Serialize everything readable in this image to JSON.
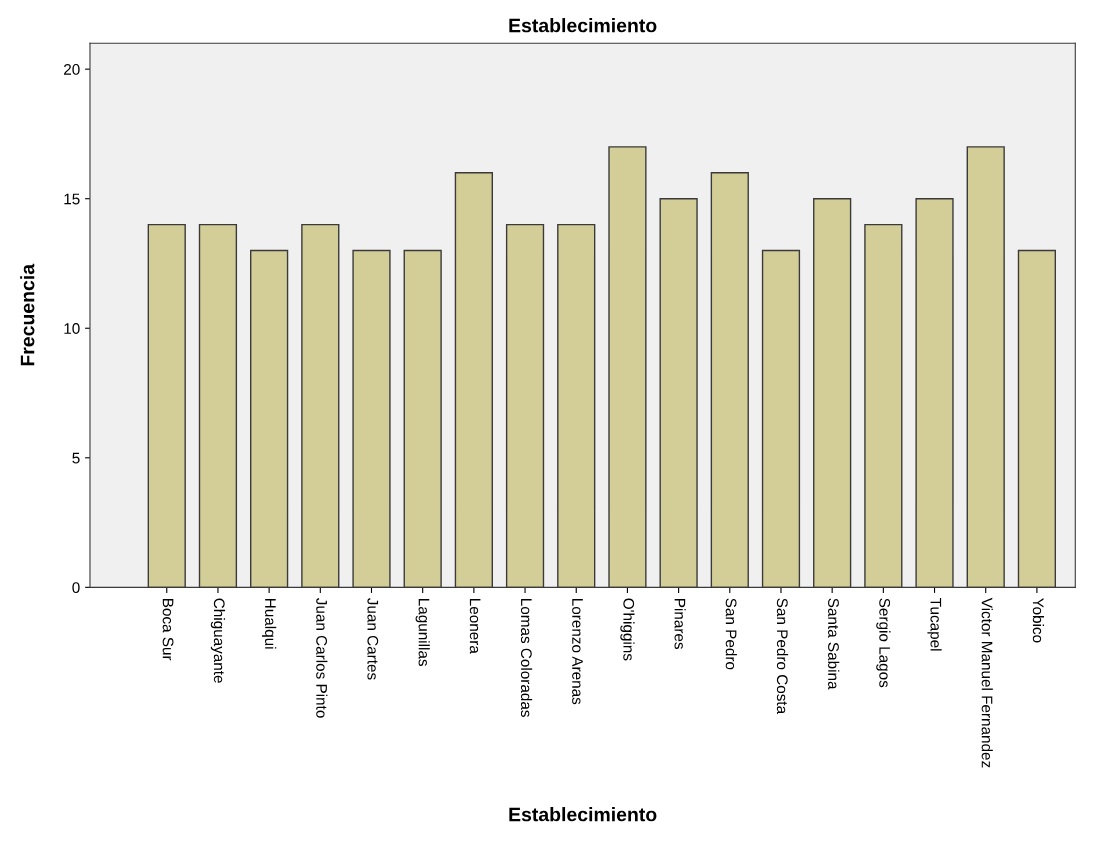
{
  "chart_data": {
    "type": "bar",
    "title": "Establecimiento",
    "xlabel": "Establecimiento",
    "ylabel": "Frecuencia",
    "categories": [
      "Boca Sur",
      "Chiguayante",
      "Hualqui",
      "Juan Carlos Pinto",
      "Juan Cartes",
      "Lagunillas",
      "Leonera",
      "Lomas Coloradas",
      "Lorenzo Arenas",
      "O'higgins",
      "Pinares",
      "San Pedro",
      "San Pedro Costa",
      "Santa Sabina",
      "Sergio Lagos",
      "Tucapel",
      "Victor Manuel Fernandez",
      "Yobico"
    ],
    "values": [
      14,
      14,
      13,
      14,
      13,
      13,
      16,
      14,
      14,
      17,
      15,
      16,
      13,
      15,
      14,
      15,
      17,
      13
    ],
    "color": "#d3ce97",
    "ylim": [
      0,
      21
    ],
    "yticks": [
      0,
      5,
      10,
      15,
      20
    ],
    "grid": false
  }
}
